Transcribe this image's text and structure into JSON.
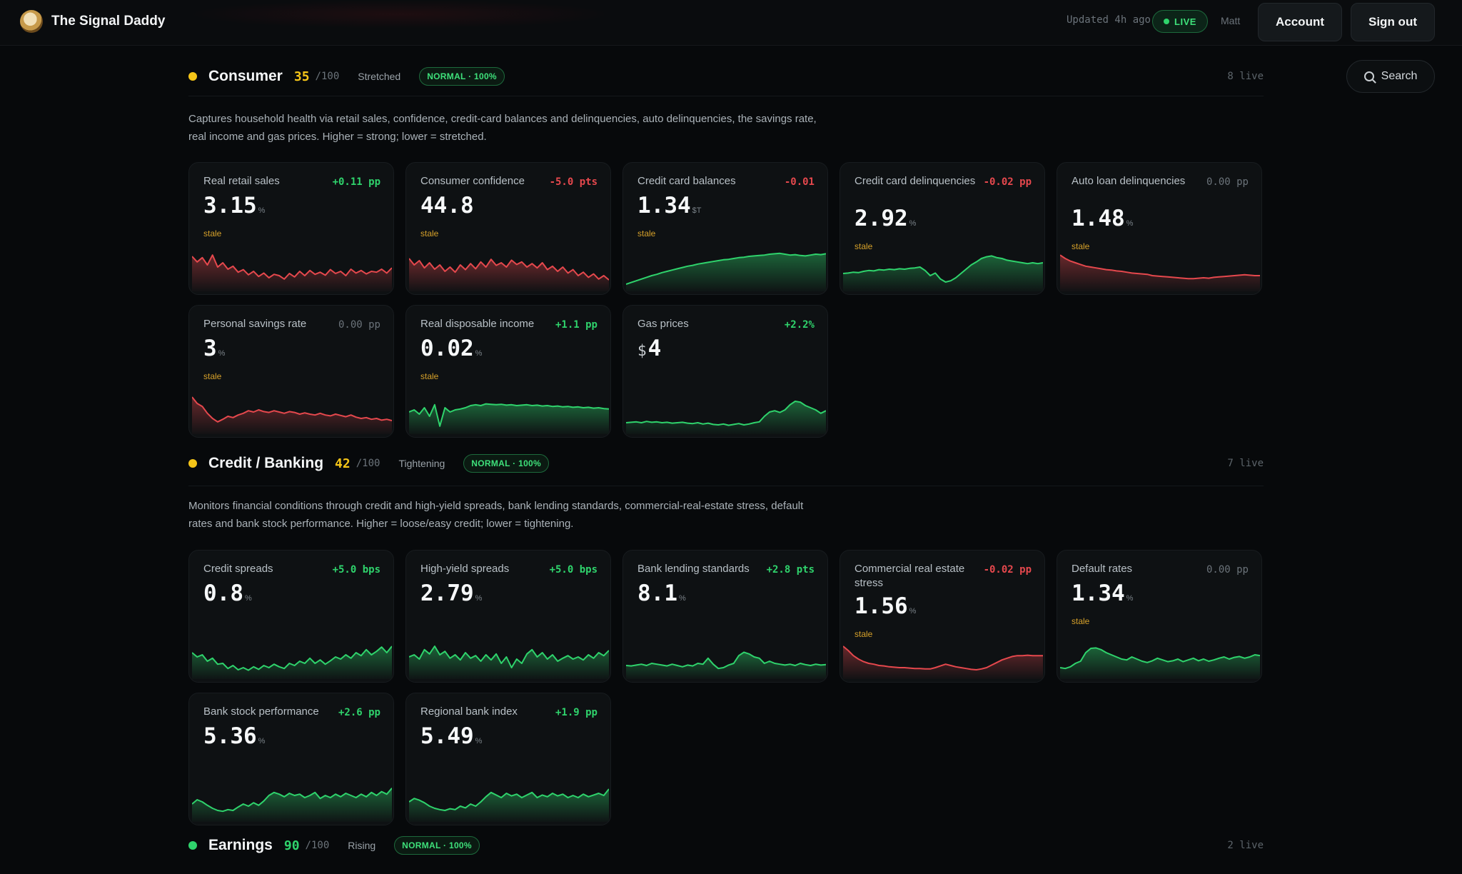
{
  "app": {
    "title": "The Signal Daddy"
  },
  "header": {
    "updated": "Updated 4h ago",
    "live_label": "LIVE",
    "user": "Matt",
    "account_label": "Account",
    "signout_label": "Sign out",
    "search_label": "Search"
  },
  "colors": {
    "positive": "#2fd36c",
    "negative": "#e5484d",
    "neutral": "#6b737a",
    "stale": "#d6a12a",
    "yellow_dot": "#f5c518",
    "green_dot": "#2fd36c"
  },
  "sections": [
    {
      "title": "Consumer",
      "score": "35",
      "out_of": "/100",
      "state": "Stretched",
      "badge": "NORMAL · 100%",
      "live": "8 live",
      "dot": "yellow",
      "description_1": "Captures household health via retail sales, confidence, credit-card balances and delinquencies, auto delinquencies, the savings rate,",
      "description_2": "real income and gas prices. Higher = strong; lower = stretched.",
      "cards": [
        {
          "name": "Real retail sales",
          "delta": "+0.11 pp",
          "tone": "pos",
          "value": "3.15",
          "unit": "%",
          "stale": "stale",
          "trend": "red",
          "series": [
            0.75,
            0.62,
            0.72,
            0.55,
            0.78,
            0.5,
            0.6,
            0.45,
            0.52,
            0.38,
            0.44,
            0.32,
            0.4,
            0.28,
            0.36,
            0.25,
            0.33,
            0.3,
            0.22,
            0.35,
            0.27,
            0.4,
            0.3,
            0.42,
            0.33,
            0.38,
            0.31,
            0.44,
            0.35,
            0.4,
            0.3,
            0.45,
            0.36,
            0.42,
            0.34,
            0.4,
            0.38,
            0.45,
            0.36,
            0.48
          ]
        },
        {
          "name": "Consumer confidence",
          "delta": "-5.0 pts",
          "tone": "neg",
          "value": "44.8",
          "unit": "",
          "stale": "stale",
          "trend": "red",
          "series": [
            0.7,
            0.55,
            0.65,
            0.48,
            0.6,
            0.45,
            0.55,
            0.4,
            0.5,
            0.38,
            0.55,
            0.44,
            0.58,
            0.46,
            0.62,
            0.5,
            0.68,
            0.54,
            0.6,
            0.5,
            0.66,
            0.56,
            0.62,
            0.5,
            0.58,
            0.48,
            0.6,
            0.44,
            0.52,
            0.4,
            0.5,
            0.36,
            0.44,
            0.3,
            0.38,
            0.26,
            0.34,
            0.22,
            0.3,
            0.2
          ]
        },
        {
          "name": "Credit card balances",
          "delta": "-0.01",
          "tone": "neg",
          "value": "1.34",
          "unit": "$T",
          "stale": "stale",
          "trend": "green",
          "series": [
            0.1,
            0.14,
            0.18,
            0.22,
            0.26,
            0.3,
            0.33,
            0.37,
            0.4,
            0.43,
            0.46,
            0.49,
            0.52,
            0.54,
            0.57,
            0.59,
            0.61,
            0.63,
            0.65,
            0.67,
            0.68,
            0.7,
            0.72,
            0.73,
            0.75,
            0.76,
            0.77,
            0.78,
            0.8,
            0.81,
            0.82,
            0.8,
            0.78,
            0.79,
            0.77,
            0.76,
            0.78,
            0.8,
            0.79,
            0.81
          ]
        },
        {
          "name": "Credit card delinquencies",
          "delta": "-0.02 pp",
          "tone": "neg",
          "value": "2.92",
          "unit": "%",
          "stale": "stale",
          "trend": "green",
          "series": [
            0.35,
            0.36,
            0.38,
            0.37,
            0.4,
            0.42,
            0.41,
            0.44,
            0.43,
            0.45,
            0.44,
            0.46,
            0.45,
            0.47,
            0.48,
            0.5,
            0.42,
            0.3,
            0.36,
            0.22,
            0.15,
            0.18,
            0.25,
            0.35,
            0.45,
            0.55,
            0.62,
            0.7,
            0.74,
            0.76,
            0.72,
            0.7,
            0.66,
            0.64,
            0.62,
            0.6,
            0.58,
            0.6,
            0.58,
            0.6
          ]
        },
        {
          "name": "Auto loan delinquencies",
          "delta": "0.00 pp",
          "tone": "neutral",
          "value": "1.48",
          "unit": "%",
          "stale": "stale",
          "trend": "red",
          "series": [
            0.78,
            0.7,
            0.64,
            0.6,
            0.56,
            0.52,
            0.5,
            0.48,
            0.46,
            0.44,
            0.43,
            0.41,
            0.4,
            0.38,
            0.36,
            0.35,
            0.34,
            0.33,
            0.3,
            0.29,
            0.28,
            0.27,
            0.26,
            0.25,
            0.24,
            0.23,
            0.23,
            0.24,
            0.25,
            0.24,
            0.26,
            0.27,
            0.28,
            0.29,
            0.3,
            0.31,
            0.32,
            0.31,
            0.3,
            0.3
          ]
        },
        {
          "name": "Personal savings rate",
          "delta": "0.00 pp",
          "tone": "neutral",
          "value": "3",
          "unit": "%",
          "stale": "stale",
          "trend": "red",
          "series": [
            0.8,
            0.65,
            0.58,
            0.42,
            0.3,
            0.22,
            0.28,
            0.35,
            0.32,
            0.38,
            0.42,
            0.48,
            0.45,
            0.5,
            0.46,
            0.44,
            0.48,
            0.45,
            0.42,
            0.46,
            0.44,
            0.4,
            0.43,
            0.4,
            0.38,
            0.42,
            0.38,
            0.36,
            0.4,
            0.37,
            0.34,
            0.38,
            0.33,
            0.3,
            0.32,
            0.28,
            0.3,
            0.26,
            0.28,
            0.25
          ]
        },
        {
          "name": "Real disposable income",
          "delta": "+1.1 pp",
          "tone": "pos",
          "value": "0.02",
          "unit": "%",
          "stale": "stale",
          "trend": "green",
          "series": [
            0.45,
            0.5,
            0.4,
            0.55,
            0.35,
            0.62,
            0.12,
            0.55,
            0.45,
            0.5,
            0.52,
            0.55,
            0.6,
            0.62,
            0.6,
            0.64,
            0.63,
            0.62,
            0.63,
            0.61,
            0.62,
            0.6,
            0.61,
            0.62,
            0.6,
            0.61,
            0.59,
            0.6,
            0.58,
            0.59,
            0.57,
            0.58,
            0.56,
            0.57,
            0.55,
            0.56,
            0.54,
            0.55,
            0.53,
            0.52
          ]
        },
        {
          "name": "Gas prices",
          "delta": "+2.2%",
          "tone": "pos",
          "value": "4",
          "unit": "",
          "prefix": "$",
          "stale": "",
          "trend": "green",
          "series": [
            0.2,
            0.21,
            0.22,
            0.2,
            0.23,
            0.21,
            0.22,
            0.2,
            0.21,
            0.19,
            0.2,
            0.21,
            0.19,
            0.18,
            0.2,
            0.17,
            0.19,
            0.16,
            0.15,
            0.17,
            0.14,
            0.16,
            0.18,
            0.15,
            0.17,
            0.2,
            0.22,
            0.35,
            0.45,
            0.48,
            0.44,
            0.5,
            0.62,
            0.7,
            0.68,
            0.6,
            0.55,
            0.5,
            0.42,
            0.48
          ]
        }
      ]
    },
    {
      "title": "Credit / Banking",
      "score": "42",
      "out_of": "/100",
      "state": "Tightening",
      "badge": "NORMAL · 100%",
      "live": "7 live",
      "dot": "yellow",
      "description_1": "Monitors financial conditions through credit and high-yield spreads, bank lending standards, commercial-real-estate stress, default",
      "description_2": "rates and bank stock performance. Higher = loose/easy credit; lower = tightening.",
      "cards": [
        {
          "name": "Credit spreads",
          "delta": "+5.0 bps",
          "tone": "pos",
          "value": "0.8",
          "unit": "%",
          "stale": "",
          "trend": "green",
          "series": [
            0.55,
            0.45,
            0.5,
            0.35,
            0.42,
            0.28,
            0.3,
            0.18,
            0.25,
            0.15,
            0.2,
            0.14,
            0.22,
            0.16,
            0.25,
            0.2,
            0.28,
            0.22,
            0.18,
            0.3,
            0.25,
            0.35,
            0.3,
            0.42,
            0.3,
            0.38,
            0.28,
            0.36,
            0.45,
            0.4,
            0.5,
            0.42,
            0.55,
            0.48,
            0.62,
            0.5,
            0.58,
            0.68,
            0.55,
            0.7
          ]
        },
        {
          "name": "High-yield spreads",
          "delta": "+5.0 bps",
          "tone": "pos",
          "value": "2.79",
          "unit": "%",
          "stale": "",
          "trend": "green",
          "series": [
            0.45,
            0.5,
            0.4,
            0.62,
            0.52,
            0.7,
            0.5,
            0.58,
            0.42,
            0.5,
            0.38,
            0.55,
            0.42,
            0.48,
            0.35,
            0.5,
            0.38,
            0.52,
            0.3,
            0.45,
            0.2,
            0.4,
            0.3,
            0.52,
            0.62,
            0.45,
            0.55,
            0.4,
            0.5,
            0.35,
            0.42,
            0.48,
            0.4,
            0.45,
            0.38,
            0.5,
            0.42,
            0.55,
            0.48,
            0.6
          ]
        },
        {
          "name": "Bank lending standards",
          "delta": "+2.8 pts",
          "tone": "pos",
          "value": "8.1",
          "unit": "%",
          "stale": "",
          "trend": "green",
          "series": [
            0.25,
            0.24,
            0.26,
            0.28,
            0.25,
            0.3,
            0.28,
            0.26,
            0.24,
            0.28,
            0.25,
            0.22,
            0.26,
            0.24,
            0.3,
            0.28,
            0.42,
            0.28,
            0.18,
            0.2,
            0.26,
            0.3,
            0.48,
            0.56,
            0.52,
            0.45,
            0.42,
            0.3,
            0.35,
            0.3,
            0.28,
            0.26,
            0.28,
            0.25,
            0.3,
            0.27,
            0.25,
            0.28,
            0.26,
            0.27
          ]
        },
        {
          "name": "Commercial real estate stress",
          "delta": "-0.02 pp",
          "tone": "neg",
          "value": "1.56",
          "unit": "%",
          "stale": "stale",
          "trend": "red",
          "series": [
            0.7,
            0.6,
            0.48,
            0.4,
            0.34,
            0.3,
            0.28,
            0.25,
            0.24,
            0.22,
            0.21,
            0.2,
            0.2,
            0.19,
            0.18,
            0.18,
            0.17,
            0.17,
            0.2,
            0.24,
            0.28,
            0.25,
            0.22,
            0.2,
            0.18,
            0.16,
            0.15,
            0.17,
            0.2,
            0.26,
            0.32,
            0.38,
            0.42,
            0.46,
            0.48,
            0.48,
            0.49,
            0.48,
            0.48,
            0.48
          ]
        },
        {
          "name": "Default rates",
          "delta": "0.00 pp",
          "tone": "neutral",
          "value": "1.34",
          "unit": "%",
          "stale": "stale",
          "trend": "green",
          "series": [
            0.2,
            0.18,
            0.22,
            0.3,
            0.35,
            0.55,
            0.65,
            0.66,
            0.62,
            0.55,
            0.5,
            0.45,
            0.4,
            0.38,
            0.45,
            0.4,
            0.35,
            0.32,
            0.36,
            0.42,
            0.38,
            0.34,
            0.36,
            0.4,
            0.34,
            0.38,
            0.42,
            0.36,
            0.4,
            0.35,
            0.38,
            0.42,
            0.45,
            0.4,
            0.44,
            0.46,
            0.42,
            0.45,
            0.5,
            0.48
          ]
        },
        {
          "name": "Bank stock performance",
          "delta": "+2.6 pp",
          "tone": "pos",
          "value": "5.36",
          "unit": "%",
          "stale": "",
          "trend": "green",
          "series": [
            0.35,
            0.45,
            0.4,
            0.32,
            0.25,
            0.2,
            0.18,
            0.22,
            0.2,
            0.28,
            0.35,
            0.3,
            0.38,
            0.32,
            0.42,
            0.55,
            0.62,
            0.58,
            0.52,
            0.6,
            0.55,
            0.58,
            0.5,
            0.55,
            0.62,
            0.48,
            0.55,
            0.5,
            0.58,
            0.52,
            0.6,
            0.55,
            0.5,
            0.58,
            0.52,
            0.62,
            0.55,
            0.64,
            0.58,
            0.72
          ]
        },
        {
          "name": "Regional bank index",
          "delta": "+1.9 pp",
          "tone": "pos",
          "value": "5.49",
          "unit": "%",
          "stale": "",
          "trend": "green",
          "series": [
            0.4,
            0.48,
            0.44,
            0.38,
            0.3,
            0.25,
            0.22,
            0.2,
            0.24,
            0.22,
            0.3,
            0.26,
            0.35,
            0.3,
            0.4,
            0.52,
            0.62,
            0.56,
            0.5,
            0.6,
            0.54,
            0.58,
            0.5,
            0.56,
            0.62,
            0.5,
            0.56,
            0.52,
            0.6,
            0.54,
            0.58,
            0.5,
            0.55,
            0.5,
            0.58,
            0.52,
            0.56,
            0.6,
            0.55,
            0.7
          ]
        }
      ]
    },
    {
      "title": "Earnings",
      "score": "90",
      "out_of": "/100",
      "state": "Rising",
      "badge": "NORMAL · 100%",
      "live": "2 live",
      "dot": "green",
      "description_1": "",
      "description_2": "",
      "cards": []
    }
  ]
}
